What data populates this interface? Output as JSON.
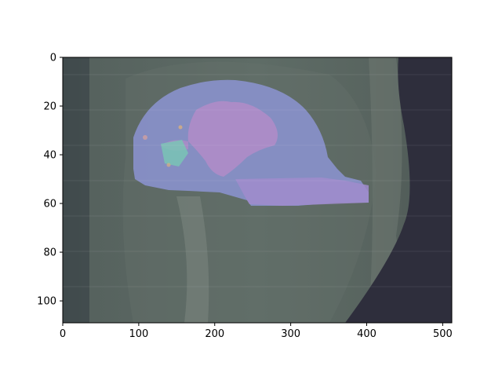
{
  "figure": {
    "x_axis": {
      "range": [
        0,
        512
      ],
      "ticks": [
        {
          "value": 0,
          "label": "0"
        },
        {
          "value": 100,
          "label": "100"
        },
        {
          "value": 200,
          "label": "200"
        },
        {
          "value": 300,
          "label": "300"
        },
        {
          "value": 400,
          "label": "400"
        },
        {
          "value": 500,
          "label": "500"
        }
      ]
    },
    "y_axis": {
      "range": [
        0,
        109
      ],
      "inverted": true,
      "ticks": [
        {
          "value": 0,
          "label": "0"
        },
        {
          "value": 20,
          "label": "20"
        },
        {
          "value": 40,
          "label": "40"
        },
        {
          "value": 60,
          "label": "60"
        },
        {
          "value": 80,
          "label": "80"
        },
        {
          "value": 100,
          "label": "100"
        }
      ]
    },
    "image": {
      "description_colors": {
        "background_tissue": "#586660",
        "dark_right_region": "#2e2e3c",
        "brain_mask_overlay": "#8c94d2",
        "internal_structure": "#b48cc8",
        "lesion_highlight": "#78c8b4"
      }
    }
  }
}
